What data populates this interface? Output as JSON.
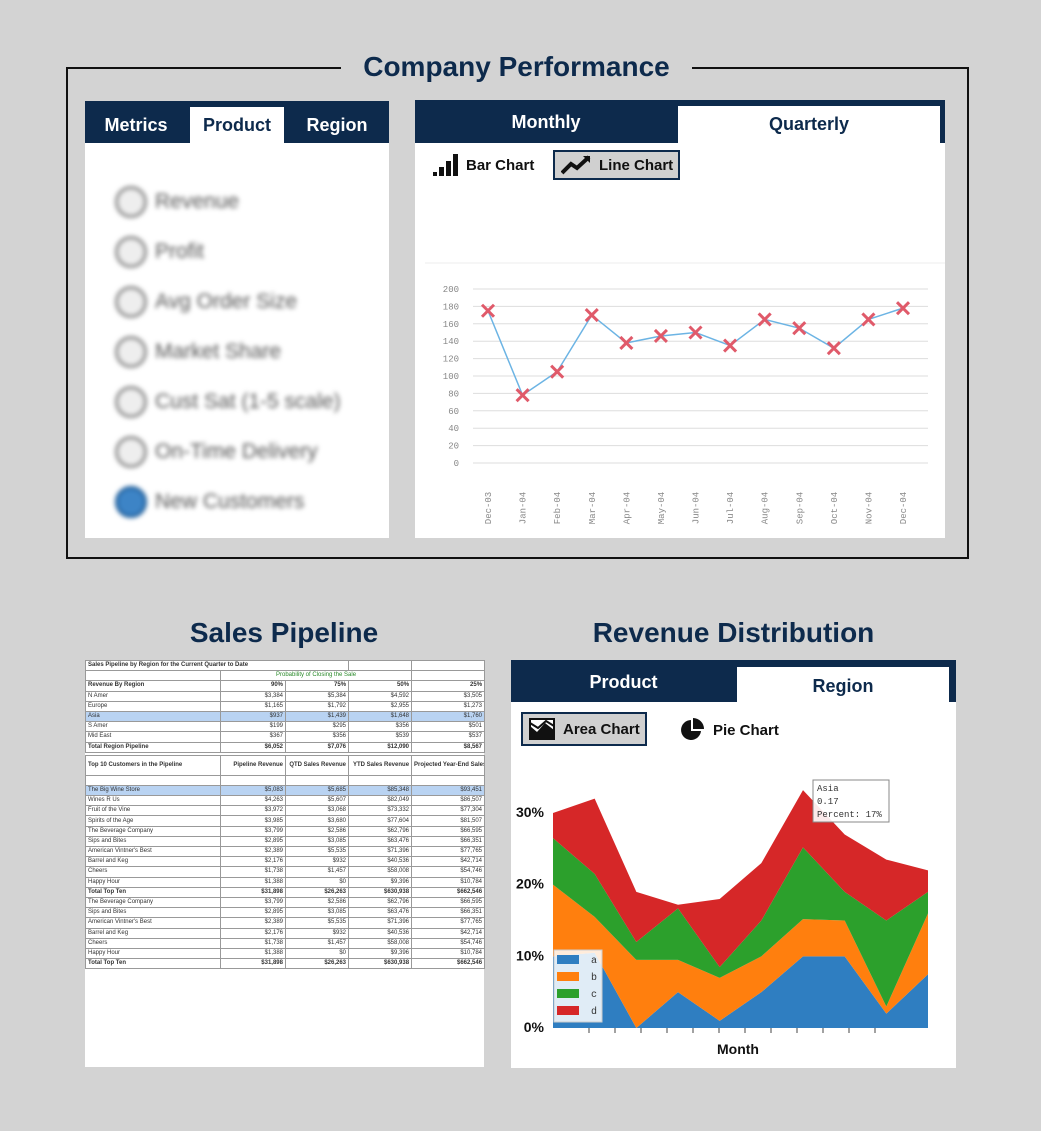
{
  "performance": {
    "title": "Company Performance",
    "metric_tabs": [
      "Metrics",
      "Product",
      "Region"
    ],
    "metrics": [
      {
        "label": "Revenue",
        "checked": false
      },
      {
        "label": "Profit",
        "checked": false
      },
      {
        "label": "Avg Order Size",
        "checked": false
      },
      {
        "label": "Market Share",
        "checked": false
      },
      {
        "label": "Cust Sat (1-5 scale)",
        "checked": false
      },
      {
        "label": "On-Time Delivery",
        "checked": false
      },
      {
        "label": "New Customers",
        "checked": true
      }
    ],
    "period_tabs": [
      "Monthly",
      "Quarterly"
    ],
    "chart_buttons": {
      "bar": "Bar Chart",
      "line": "Line Chart"
    }
  },
  "pipeline": {
    "title": "Sales Pipeline",
    "header_title": "Sales Pipeline by Region for the Current Quarter to Date",
    "probability_label": "Probability of Closing the Sale",
    "region_header": [
      "Revenue By Region",
      "90%",
      "75%",
      "50%",
      "25%"
    ],
    "regions": [
      [
        "N Amer",
        "$3,384",
        "$5,384",
        "$4,592",
        "$3,505"
      ],
      [
        "Europe",
        "$1,165",
        "$1,792",
        "$2,955",
        "$1,273"
      ],
      [
        "Asia",
        "$937",
        "$1,439",
        "$1,648",
        "$1,760"
      ],
      [
        "S Amer",
        "$199",
        "$295",
        "$356",
        "$501"
      ],
      [
        "Mid East",
        "$367",
        "$356",
        "$539",
        "$537"
      ]
    ],
    "region_total": [
      "Total Region Pipeline",
      "$6,052",
      "$7,076",
      "$12,090",
      "$8,567"
    ],
    "customer_header": [
      "Top 10 Customers in the Pipeline",
      "Pipeline Revenue",
      "QTD Sales Revenue",
      "YTD Sales Revenue",
      "Projected Year-End Sales"
    ],
    "customers": [
      [
        "The Big Wine Store",
        "$5,083",
        "$5,685",
        "$85,348",
        "$93,451"
      ],
      [
        "Wines R Us",
        "$4,263",
        "$5,607",
        "$82,049",
        "$86,507"
      ],
      [
        "Fruit of the Vine",
        "$3,972",
        "$3,068",
        "$73,332",
        "$77,304"
      ],
      [
        "Spirits of the Age",
        "$3,985",
        "$3,680",
        "$77,604",
        "$81,507"
      ],
      [
        "The Beverage Company",
        "$3,799",
        "$2,586",
        "$62,796",
        "$66,595"
      ],
      [
        "Sips and Bites",
        "$2,895",
        "$3,085",
        "$63,476",
        "$66,351"
      ],
      [
        "American Vintner's Best",
        "$2,389",
        "$5,535",
        "$71,396",
        "$77,765"
      ],
      [
        "Barrel and Keg",
        "$2,176",
        "$932",
        "$40,536",
        "$42,714"
      ],
      [
        "Cheers",
        "$1,738",
        "$1,457",
        "$58,008",
        "$54,746"
      ],
      [
        "Happy Hour",
        "$1,388",
        "$0",
        "$9,396",
        "$10,784"
      ]
    ],
    "customer_total": [
      "Total Top Ten",
      "$31,898",
      "$26,263",
      "$630,938",
      "$662,546"
    ],
    "extra_customers": [
      [
        "The Beverage Company",
        "$3,799",
        "$2,586",
        "$62,796",
        "$66,595"
      ],
      [
        "Sips and Bites",
        "$2,895",
        "$3,085",
        "$63,476",
        "$66,351"
      ],
      [
        "American Vintner's Best",
        "$2,389",
        "$5,535",
        "$71,396",
        "$77,765"
      ],
      [
        "Barrel and Keg",
        "$2,176",
        "$932",
        "$40,536",
        "$42,714"
      ],
      [
        "Cheers",
        "$1,738",
        "$1,457",
        "$58,008",
        "$54,746"
      ],
      [
        "Happy Hour",
        "$1,388",
        "$0",
        "$9,396",
        "$10,784"
      ]
    ],
    "extra_total": [
      "Total Top Ten",
      "$31,898",
      "$26,263",
      "$630,938",
      "$662,546"
    ]
  },
  "revenue": {
    "title": "Revenue Distribution",
    "tabs": [
      "Product",
      "Region"
    ],
    "chart_buttons": {
      "area": "Area Chart",
      "pie": "Pie Chart"
    },
    "tooltip": [
      "Asia",
      "0.17",
      "Percent: 17%"
    ]
  },
  "colors": {
    "navy": "#0d2a4c",
    "line_series": "#6cb4e4",
    "marker": "#e05a6a",
    "area_a": "#2f7ec1",
    "area_b": "#ff7f0e",
    "area_c": "#2ca02c",
    "area_d": "#d62728"
  },
  "chart_data": [
    {
      "type": "line",
      "categories": [
        "Dec-03",
        "Jan-04",
        "Feb-04",
        "Mar-04",
        "Apr-04",
        "May-04",
        "Jun-04",
        "Jul-04",
        "Aug-04",
        "Sep-04",
        "Oct-04",
        "Nov-04",
        "Dec-04"
      ],
      "values": [
        175,
        78,
        105,
        170,
        138,
        146,
        150,
        135,
        165,
        155,
        132,
        165,
        178
      ],
      "ylim": [
        0,
        200
      ],
      "yticks": [
        0,
        20,
        40,
        60,
        80,
        100,
        120,
        140,
        160,
        180,
        200
      ],
      "grid": true
    },
    {
      "type": "area",
      "stacked": true,
      "xlabel": "Month",
      "x_points": 16,
      "yticks": [
        "0%",
        "10%",
        "20%",
        "30%"
      ],
      "ylim": [
        0,
        0.34
      ],
      "legend": "bottom-left",
      "series": [
        {
          "name": "a",
          "values": [
            0.1,
            0.105,
            0.0,
            0.05,
            0.01,
            0.05,
            0.1,
            0.1,
            0.02,
            0.075
          ]
        },
        {
          "name": "b",
          "values": [
            0.1,
            0.05,
            0.095,
            0.045,
            0.06,
            0.05,
            0.052,
            0.05,
            0.01,
            0.085
          ]
        },
        {
          "name": "c",
          "values": [
            0.065,
            0.06,
            0.025,
            0.072,
            0.015,
            0.05,
            0.1,
            0.04,
            0.12,
            0.03
          ]
        },
        {
          "name": "d",
          "values": [
            0.035,
            0.105,
            0.07,
            0.005,
            0.095,
            0.08,
            0.08,
            0.08,
            0.085,
            0.03
          ]
        }
      ],
      "tooltip_series": "Asia",
      "tooltip_value": 0.17
    }
  ]
}
